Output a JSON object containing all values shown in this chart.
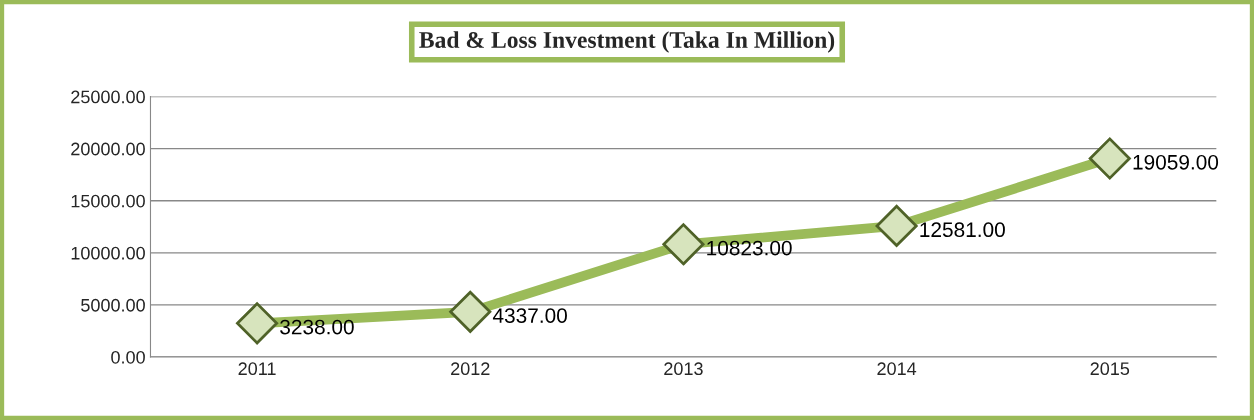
{
  "chart_data": {
    "type": "line",
    "title": "Bad & Loss Investment (Taka In Million)",
    "categories": [
      "2011",
      "2012",
      "2013",
      "2014",
      "2015"
    ],
    "series": [
      {
        "color": "#9bbb59",
        "values": [
          3238,
          4337,
          10823,
          12581,
          19059
        ]
      }
    ],
    "value_labels": [
      "3238.00",
      "4337.00",
      "10823.00",
      "12581.00",
      "19059.00"
    ],
    "ylim": [
      0,
      25000
    ],
    "yticks": [
      {
        "value": 0,
        "label": "0.00"
      },
      {
        "value": 5000,
        "label": "5000.00"
      },
      {
        "value": 10000,
        "label": "10000.00"
      },
      {
        "value": 15000,
        "label": "15000.00"
      },
      {
        "value": 20000,
        "label": "20000.00"
      },
      {
        "value": 25000,
        "label": "25000.00"
      }
    ],
    "grid": "y",
    "marker": "diamond",
    "line_style": "solid"
  }
}
